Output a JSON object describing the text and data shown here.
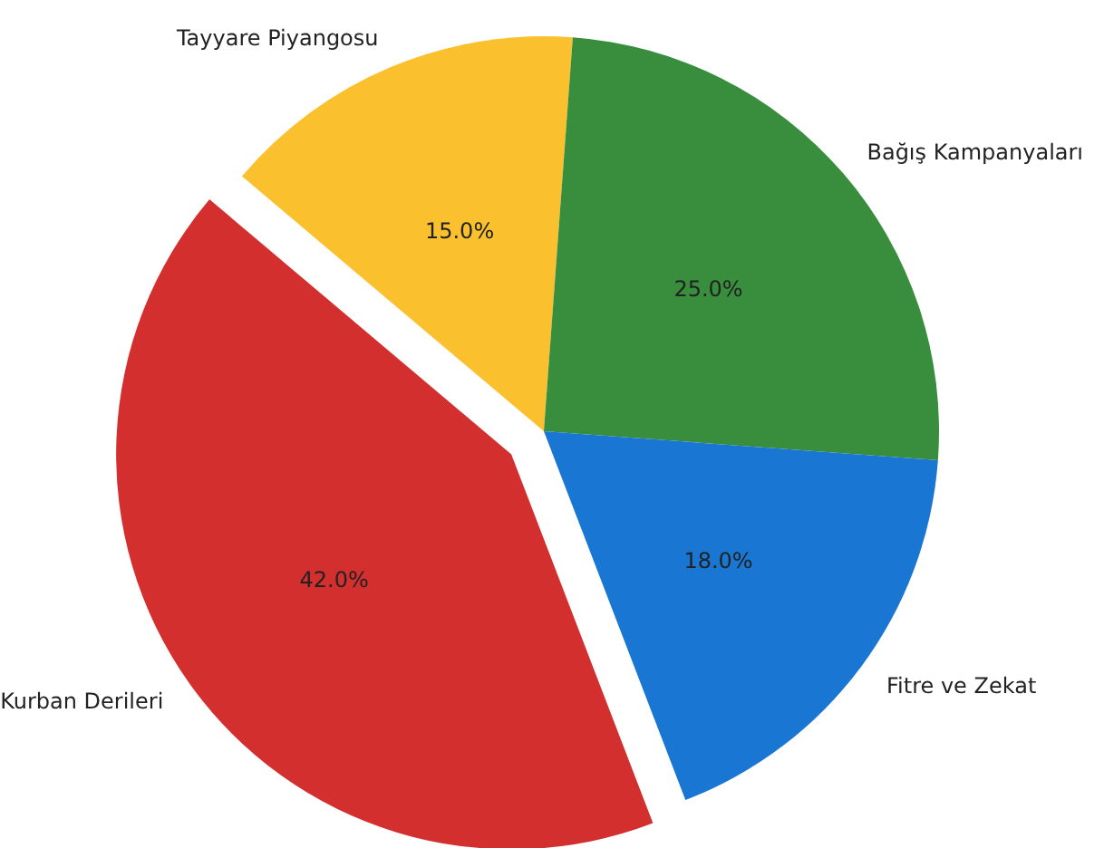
{
  "chart_data": {
    "type": "pie",
    "categories": [
      "Kurban Derileri",
      "Tayyare Piyangosu",
      "Bağış Kampanyaları",
      "Fitre ve Zekat"
    ],
    "values": [
      42,
      15,
      25,
      18
    ],
    "colors": [
      "#d32f2f",
      "#fbc02d",
      "#388e3c",
      "#1976d2"
    ],
    "value_labels": [
      "42.0%",
      "15.0%",
      "25.0%",
      "18.0%"
    ]
  }
}
